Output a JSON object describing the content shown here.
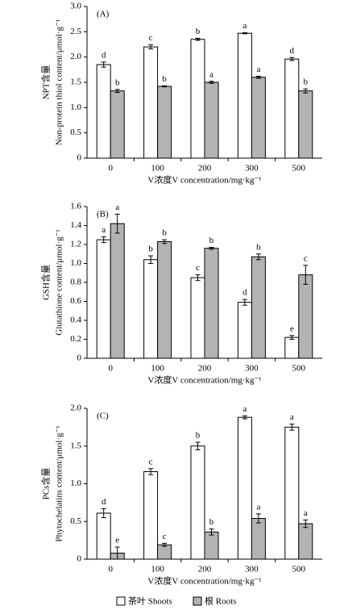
{
  "chart_data": [
    {
      "type": "bar",
      "title": "(A)",
      "y_label": [
        "NPT含量",
        "Non-protein thiol content/μmol·g⁻¹"
      ],
      "x_label": "V浓度V concentration/mg·kg⁻¹",
      "categories": [
        "0",
        "100",
        "200",
        "300",
        "500"
      ],
      "series": [
        {
          "name": "茶叶 Shoots",
          "color": "#ffffff",
          "values": [
            1.85,
            2.2,
            2.35,
            2.47,
            1.96
          ],
          "errors": [
            0.05,
            0.04,
            0.02,
            0.01,
            0.03
          ],
          "letters": [
            "d",
            "c",
            "b",
            "a",
            "d"
          ]
        },
        {
          "name": "根 Roots",
          "color": "#b3b3b3",
          "values": [
            1.33,
            1.42,
            1.5,
            1.6,
            1.33
          ],
          "errors": [
            0.03,
            0.01,
            0.02,
            0.02,
            0.04
          ],
          "letters": [
            "b",
            "b",
            "a",
            "a",
            "b"
          ]
        }
      ],
      "ylim": [
        0,
        3
      ],
      "yticks": [
        0,
        0.5,
        {
          "value": 1,
          "label": "1.0"
        },
        1.5,
        {
          "value": 2,
          "label": "2.0"
        },
        2.5,
        {
          "value": 3,
          "label": "3.0"
        }
      ]
    },
    {
      "type": "bar",
      "title": "(B)",
      "y_label": [
        "GSH含量",
        "Glutathione content/μmol·g⁻¹"
      ],
      "x_label": "V浓度V concentration/mg·kg⁻¹",
      "categories": [
        "0",
        "100",
        "200",
        "300",
        "500"
      ],
      "series": [
        {
          "color": "#ffffff",
          "values": [
            1.25,
            1.04,
            0.85,
            0.59,
            0.22
          ],
          "errors": [
            0.03,
            0.04,
            0.03,
            0.03,
            0.02
          ],
          "letters": [
            "a",
            "b",
            "c",
            "d",
            "e"
          ]
        },
        {
          "color": "#b3b3b3",
          "values": [
            1.42,
            1.23,
            1.16,
            1.07,
            0.88
          ],
          "errors": [
            0.1,
            0.02,
            0.01,
            0.03,
            0.1
          ],
          "letters": [
            "a",
            "b",
            "b",
            "b",
            "c"
          ]
        }
      ],
      "ylim": [
        0,
        1.6
      ],
      "yticks": [
        0,
        0.2,
        0.4,
        0.6,
        0.8,
        {
          "value": 1,
          "label": "1.0"
        },
        1.2,
        1.4,
        1.6
      ]
    },
    {
      "type": "bar",
      "title": "(C)",
      "y_label": [
        "PCs含量",
        "Phytochelatins content/μmol·g⁻¹"
      ],
      "x_label": "V浓度V concentration/mg·kg⁻¹",
      "categories": [
        "0",
        "100",
        "200",
        "300",
        "500"
      ],
      "series": [
        {
          "color": "#ffffff",
          "values": [
            0.61,
            1.16,
            1.5,
            1.88,
            1.75
          ],
          "errors": [
            0.06,
            0.04,
            0.05,
            0.02,
            0.04
          ],
          "letters": [
            "d",
            "c",
            "b",
            "a",
            "a"
          ]
        },
        {
          "color": "#b3b3b3",
          "values": [
            0.08,
            0.19,
            0.36,
            0.54,
            0.47
          ],
          "errors": [
            0.08,
            0.02,
            0.04,
            0.06,
            0.05
          ],
          "letters": [
            "e",
            "c",
            "b",
            "a",
            "a"
          ]
        }
      ],
      "ylim": [
        0,
        2
      ],
      "yticks": [
        0,
        0.5,
        {
          "value": 1,
          "label": "1.0"
        },
        1.5,
        {
          "value": 2,
          "label": "2.0"
        }
      ]
    }
  ]
}
